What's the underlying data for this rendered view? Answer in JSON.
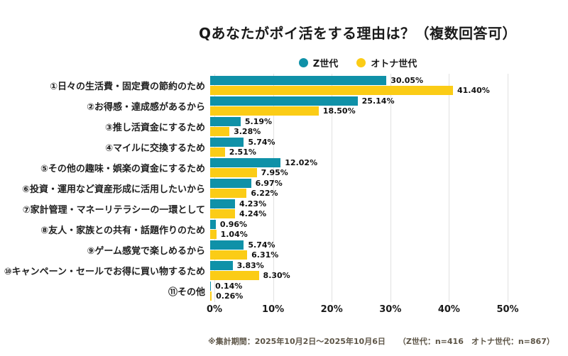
{
  "title": "Qあなたがポイ活をする理由は？（複数回答可）",
  "chart_data": {
    "type": "bar",
    "orientation": "horizontal",
    "title": "Qあなたがポイ活をする理由は？（複数回答可）",
    "categories": [
      "①日々の生活費・固定費の節約のため",
      "②お得感・達成感があるから",
      "③推し活資金にするため",
      "④マイルに交換するため",
      "⑤その他の趣味・娯楽の資金にするため",
      "⑥投資・運用など資産形成に活用したいから",
      "⑦家計管理・マネーリテラシーの一環として",
      "⑧友人・家族との共有・話題作りのため",
      "⑨ゲーム感覚で楽しめるから",
      "⑩キャンペーン・セールでお得に買い物するため",
      "⑪その他"
    ],
    "series": [
      {
        "name": "Z世代",
        "color": "#0F91A8",
        "values": [
          30.05,
          25.14,
          5.19,
          5.74,
          12.02,
          6.97,
          4.23,
          0.96,
          5.74,
          3.83,
          0.14
        ],
        "labels": [
          "30.05%",
          "25.14%",
          "5.19%",
          "5.74%",
          "12.02%",
          "6.97%",
          "4.23%",
          "0.96%",
          "5.74%",
          "3.83%",
          "0.14%"
        ]
      },
      {
        "name": "オトナ世代",
        "color": "#FBCC16",
        "values": [
          41.4,
          18.5,
          3.28,
          2.51,
          7.95,
          6.22,
          4.24,
          1.04,
          6.31,
          8.3,
          0.26
        ],
        "labels": [
          "41.40%",
          "18.50%",
          "3.28%",
          "2.51%",
          "7.95%",
          "6.22%",
          "4.24%",
          "1.04%",
          "6.31%",
          "8.30%",
          "0.26%"
        ]
      }
    ],
    "xlim": [
      0,
      50
    ],
    "x_ticks": [
      "0%",
      "10%",
      "20%",
      "30%",
      "40%",
      "50%"
    ],
    "grid": true,
    "legend_position": "top",
    "gridline_color": "#e1e1e1"
  },
  "footer": {
    "period": "※集計期間：2025年10月2日〜2025年10月6日",
    "samples": "（Z世代：n=416　オトナ世代：n=867）"
  }
}
